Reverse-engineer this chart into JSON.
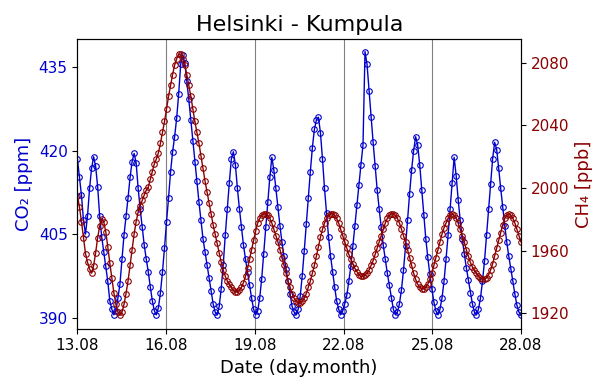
{
  "title": "Helsinki - Kumpula",
  "xlabel": "Date (day.month)",
  "ylabel_left": "CO₂ [ppm]",
  "ylabel_right": "CH₄ [ppb]",
  "co2_color": "#0000cc",
  "ch4_color": "#8b0000",
  "xlim": [
    0,
    15
  ],
  "co2_ylim": [
    388,
    440
  ],
  "ch4_ylim": [
    1910,
    2095
  ],
  "co2_yticks": [
    390,
    405,
    420,
    435
  ],
  "ch4_yticks": [
    1920,
    1960,
    2000,
    2040,
    2080
  ],
  "xtick_positions": [
    0,
    3,
    6,
    9,
    12,
    15
  ],
  "xtick_labels": [
    "13.08",
    "16.08",
    "19.08",
    "22.08",
    "25.08",
    "28.08"
  ],
  "vline_positions": [
    3,
    6,
    9,
    12
  ],
  "title_fontsize": 16,
  "label_fontsize": 13,
  "tick_fontsize": 11,
  "marker": "o",
  "markersize": 4,
  "linewidth": 1.0,
  "markerfacecolor": "none",
  "co2_data": [
    418.5,
    415.2,
    412.0,
    407.5,
    405.0,
    408.3,
    413.2,
    416.8,
    418.9,
    417.2,
    413.5,
    408.2,
    404.5,
    401.8,
    399.2,
    396.5,
    393.0,
    391.5,
    390.5,
    391.2,
    393.5,
    396.0,
    400.5,
    404.8,
    408.2,
    411.5,
    415.2,
    418.0,
    419.5,
    417.8,
    413.2,
    409.5,
    406.2,
    403.0,
    400.5,
    398.2,
    395.5,
    393.0,
    391.2,
    390.5,
    391.8,
    394.5,
    398.2,
    402.5,
    407.2,
    411.5,
    416.2,
    419.8,
    422.5,
    425.8,
    430.2,
    435.5,
    437.2,
    435.8,
    432.5,
    429.2,
    425.5,
    421.8,
    418.0,
    414.5,
    410.8,
    407.5,
    404.2,
    401.8,
    399.5,
    397.2,
    394.8,
    392.5,
    391.0,
    390.5,
    392.0,
    395.2,
    399.5,
    404.8,
    409.5,
    414.2,
    418.5,
    419.8,
    417.5,
    413.2,
    409.5,
    406.2,
    403.0,
    400.5,
    398.2,
    395.8,
    393.5,
    391.5,
    390.5,
    391.2,
    393.5,
    397.0,
    401.5,
    406.2,
    410.8,
    415.2,
    418.8,
    416.5,
    413.2,
    409.8,
    406.5,
    403.5,
    401.0,
    398.8,
    396.5,
    394.2,
    392.0,
    391.0,
    390.5,
    391.5,
    393.8,
    397.5,
    402.0,
    406.8,
    411.5,
    416.2,
    420.5,
    423.8,
    425.5,
    426.0,
    423.2,
    418.5,
    413.2,
    408.8,
    404.5,
    401.0,
    398.2,
    395.5,
    393.0,
    391.5,
    390.5,
    391.2,
    392.5,
    394.0,
    396.5,
    399.2,
    402.8,
    406.5,
    410.2,
    413.8,
    417.5,
    421.0,
    437.8,
    435.5,
    430.8,
    426.0,
    421.5,
    417.2,
    413.0,
    409.5,
    406.2,
    403.0,
    400.5,
    398.0,
    395.8,
    393.5,
    391.5,
    390.5,
    391.0,
    392.5,
    395.0,
    398.5,
    402.8,
    407.5,
    412.2,
    416.5,
    420.0,
    422.5,
    421.0,
    417.5,
    413.0,
    408.5,
    404.2,
    400.8,
    397.8,
    395.2,
    392.8,
    391.2,
    390.5,
    391.5,
    393.5,
    396.5,
    400.5,
    404.8,
    409.5,
    414.2,
    418.8,
    415.5,
    411.2,
    407.5,
    404.2,
    401.5,
    399.0,
    396.8,
    394.5,
    392.5,
    391.0,
    390.5,
    391.5,
    393.5,
    396.5,
    400.2,
    404.8,
    409.5,
    414.0,
    418.5,
    421.5,
    420.2,
    416.8,
    413.2,
    409.8,
    406.5,
    403.5,
    401.0,
    398.8,
    396.5,
    394.2,
    392.2,
    391.0,
    390.5
  ],
  "ch4_data": [
    1995.0,
    1988.0,
    1978.5,
    1968.2,
    1958.0,
    1952.5,
    1948.2,
    1945.5,
    1950.2,
    1958.5,
    1968.2,
    1975.5,
    1980.2,
    1978.5,
    1972.0,
    1962.5,
    1952.0,
    1942.5,
    1933.0,
    1925.5,
    1920.5,
    1918.5,
    1920.5,
    1925.5,
    1932.5,
    1940.5,
    1950.5,
    1960.5,
    1970.5,
    1978.5,
    1984.5,
    1988.5,
    1992.0,
    1995.5,
    1998.5,
    2000.5,
    2005.5,
    2010.5,
    2015.5,
    2018.5,
    2022.5,
    2028.5,
    2035.5,
    2042.5,
    2050.5,
    2058.5,
    2065.5,
    2072.5,
    2078.5,
    2082.5,
    2085.5,
    2085.5,
    2082.5,
    2078.5,
    2072.5,
    2065.5,
    2058.5,
    2050.5,
    2042.5,
    2035.5,
    2028.5,
    2020.5,
    2012.5,
    2004.5,
    1997.5,
    1990.5,
    1983.5,
    1976.5,
    1970.5,
    1964.5,
    1958.5,
    1952.5,
    1947.5,
    1943.5,
    1940.5,
    1938.5,
    1936.5,
    1934.5,
    1933.5,
    1933.5,
    1934.5,
    1936.5,
    1939.5,
    1943.5,
    1948.5,
    1954.5,
    1960.5,
    1966.5,
    1972.5,
    1977.5,
    1980.5,
    1982.5,
    1983.5,
    1983.5,
    1982.5,
    1980.5,
    1977.5,
    1973.5,
    1969.5,
    1965.5,
    1960.5,
    1955.5,
    1950.5,
    1945.5,
    1940.5,
    1936.5,
    1932.5,
    1929.5,
    1927.5,
    1926.5,
    1926.5,
    1927.5,
    1929.5,
    1932.5,
    1936.5,
    1940.5,
    1945.5,
    1950.5,
    1956.5,
    1962.5,
    1968.5,
    1973.5,
    1977.5,
    1980.5,
    1982.5,
    1983.5,
    1983.5,
    1982.5,
    1980.5,
    1977.5,
    1973.5,
    1969.5,
    1965.5,
    1961.5,
    1957.5,
    1954.5,
    1951.5,
    1948.5,
    1946.5,
    1944.5,
    1943.5,
    1943.5,
    1944.5,
    1945.5,
    1947.5,
    1950.5,
    1953.5,
    1957.5,
    1961.5,
    1965.5,
    1969.5,
    1973.5,
    1977.5,
    1980.5,
    1982.5,
    1983.5,
    1983.5,
    1982.5,
    1980.5,
    1977.5,
    1973.5,
    1969.5,
    1965.5,
    1960.5,
    1955.5,
    1950.5,
    1945.5,
    1941.5,
    1938.5,
    1936.5,
    1935.5,
    1935.5,
    1936.5,
    1938.5,
    1941.5,
    1945.5,
    1950.5,
    1955.5,
    1960.5,
    1965.5,
    1970.5,
    1974.5,
    1977.5,
    1980.5,
    1982.5,
    1983.5,
    1982.5,
    1980.5,
    1977.5,
    1973.5,
    1969.5,
    1965.5,
    1960.5,
    1956.5,
    1952.5,
    1949.5,
    1947.5,
    1945.5,
    1943.5,
    1942.5,
    1941.5,
    1941.5,
    1942.5,
    1944.5,
    1947.5,
    1951.5,
    1956.5,
    1961.5,
    1966.5,
    1971.5,
    1976.5,
    1980.5,
    1982.5,
    1983.5,
    1982.5,
    1980.5,
    1977.5,
    1973.5,
    1969.5,
    1965.5
  ]
}
